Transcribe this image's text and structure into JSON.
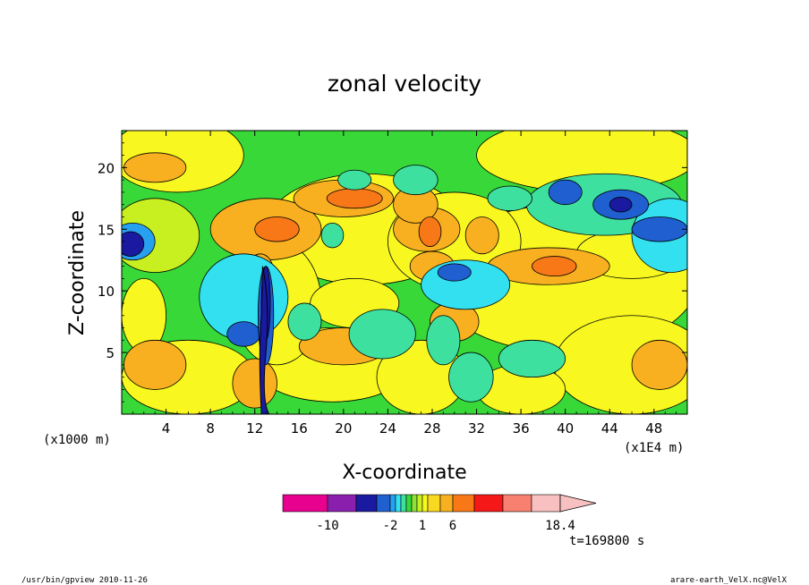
{
  "chart_data": {
    "type": "heatmap",
    "title": "zonal velocity",
    "xlabel": "X-coordinate",
    "ylabel": "Z-coordinate",
    "x_unit_left": "(x1000 m)",
    "x_unit_right": "(x1E4 m)",
    "xlim": [
      0,
      51
    ],
    "ylim": [
      0,
      23
    ],
    "x_ticks": [
      4,
      8,
      12,
      16,
      20,
      24,
      28,
      32,
      36,
      40,
      44,
      48
    ],
    "y_ticks": [
      5,
      10,
      15,
      20
    ],
    "colorbar": {
      "levels": [
        -14,
        -10,
        -6,
        -4,
        -2,
        -1.5,
        -1,
        -0.5,
        0,
        0.5,
        1,
        2,
        4,
        6,
        10,
        14,
        18.4
      ],
      "colors": [
        "#e8008f",
        "#8a1fae",
        "#1a1aa0",
        "#1f5fd0",
        "#28a0f0",
        "#33e0f0",
        "#3ee0a0",
        "#38d838",
        "#8ee038",
        "#c8f020",
        "#f8f820",
        "#f8d820",
        "#f8b020",
        "#f87818",
        "#f41818",
        "#f88070",
        "#f8c0c0"
      ],
      "extend_color": "#f8c0c0",
      "tick_labels": [
        {
          "value": -10,
          "label": "-10"
        },
        {
          "value": -2,
          "label": "-2"
        },
        {
          "value": 1,
          "label": "1"
        },
        {
          "value": 6,
          "label": "6"
        },
        {
          "value": 18.4,
          "label": "18.4"
        }
      ]
    }
  },
  "time_label": "t=169800 s",
  "footer_left": "/usr/bin/gpview  2010-11-26",
  "footer_right": "arare-earth_VelX.nc@VelX"
}
